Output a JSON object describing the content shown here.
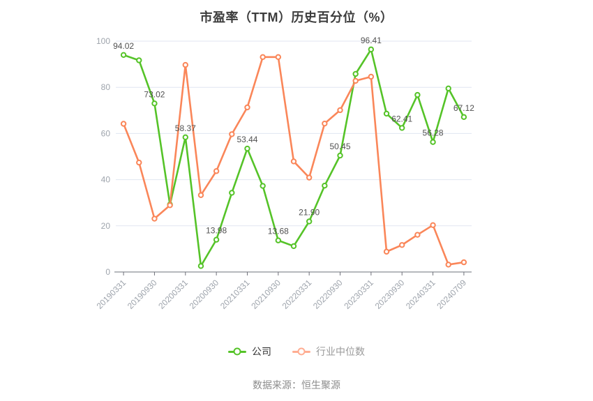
{
  "texts": {
    "source": "数据来源：恒生聚源"
  },
  "legend": {
    "items": [
      {
        "label": "公司",
        "marker_color": "#55C328",
        "text_color": "#333333"
      },
      {
        "label": "行业中位数",
        "marker_color": "#FFAD92",
        "text_color": "#999999"
      }
    ]
  },
  "axis_style": {
    "grid_color": "#E0E6F1",
    "axis_line_color": "#6E7079",
    "tick_label_color": "#9EA4AC",
    "point_label_color": "#515151"
  },
  "chart_data": {
    "type": "line",
    "title": "市盈率（TTM）历史百分位（%）",
    "xlabel": "",
    "ylabel": "",
    "ylim": [
      0,
      100
    ],
    "yticks": [
      0,
      20,
      40,
      60,
      80,
      100
    ],
    "grid": true,
    "legend_position": "bottom",
    "x_tick_every": 2,
    "x": [
      "20190331",
      "20190630",
      "20190930",
      "20191231",
      "20200331",
      "20200630",
      "20200930",
      "20201231",
      "20210331",
      "20210630",
      "20210930",
      "20211231",
      "20220331",
      "20220630",
      "20220930",
      "20221231",
      "20230331",
      "20230630",
      "20230930",
      "20231231",
      "20240331",
      "20240630",
      "20240709"
    ],
    "x_tick_labels": [
      "20190331",
      "20190930",
      "20200331",
      "20200930",
      "20210331",
      "20210930",
      "20220331",
      "20220930",
      "20230331",
      "20230930",
      "20240331",
      "20240709"
    ],
    "series": [
      {
        "name": "公司",
        "color": "#55C328",
        "values": [
          94.02,
          91.7,
          73.02,
          29.2,
          58.37,
          2.6,
          13.98,
          34.3,
          53.44,
          37.3,
          13.68,
          11.2,
          21.9,
          37.4,
          50.45,
          85.8,
          96.41,
          68.6,
          62.41,
          76.7,
          56.28,
          79.5,
          67.12
        ],
        "point_labels": [
          "94.02",
          null,
          "73.02",
          null,
          "58.37",
          null,
          "13.98",
          null,
          "53.44",
          null,
          "13.68",
          null,
          "21.90",
          null,
          "50.45",
          null,
          "96.41",
          null,
          "62.41",
          null,
          "56.28",
          null,
          "67.12"
        ]
      },
      {
        "name": "行业中位数",
        "color": "#FA8659",
        "values": [
          64.2,
          47.4,
          23.1,
          28.9,
          89.7,
          33.3,
          43.7,
          59.7,
          71.3,
          93.1,
          93.1,
          47.9,
          40.9,
          64.3,
          70.1,
          82.8,
          84.6,
          8.8,
          11.7,
          16.1,
          20.3,
          3.2,
          4.2
        ],
        "point_labels": null
      }
    ]
  }
}
